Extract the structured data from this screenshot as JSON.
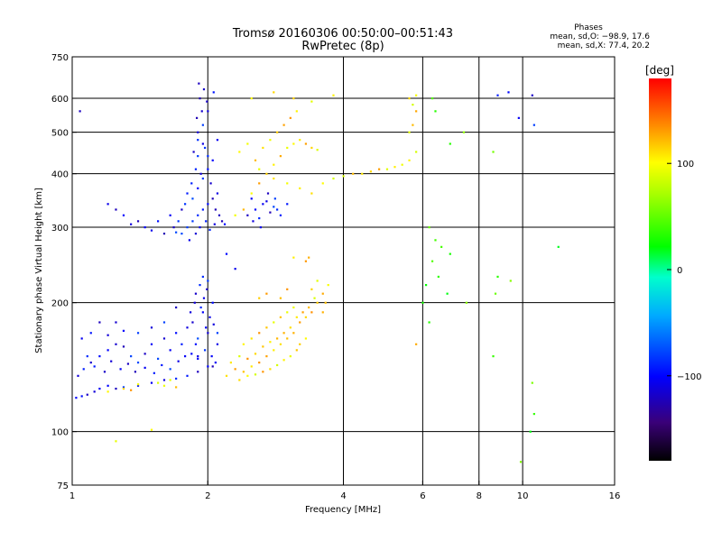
{
  "chart_data": {
    "type": "scatter",
    "title": "Tromsø 20160306 00:50:00–00:51:43",
    "subtitle": "RwPretec (8p)",
    "xlabel": "Frequency [MHz]",
    "ylabel": "Stationary phase Virtual Height [km]",
    "x_scale": "log",
    "y_scale": "log",
    "xlim": [
      1,
      16
    ],
    "ylim": [
      75,
      750
    ],
    "x_ticks": [
      "1",
      "2",
      "4",
      "6",
      "8",
      "10",
      "16"
    ],
    "x_tick_values": [
      1,
      2,
      4,
      6,
      8,
      10,
      16
    ],
    "y_ticks": [
      "75",
      "100",
      "200",
      "300",
      "400",
      "500",
      "600",
      "750"
    ],
    "y_tick_values": [
      75,
      100,
      200,
      300,
      400,
      500,
      600,
      750
    ],
    "grid_x": [
      2,
      4,
      6,
      8,
      10
    ],
    "grid_y": [
      100,
      200,
      300,
      400,
      500,
      600
    ],
    "grid": true,
    "phases": {
      "title": "Phases",
      "o_line": "mean, sd,O: −98.9, 17.6",
      "x_line": "mean, sd,X:  77.4, 20.2"
    },
    "colorbar": {
      "label": "[deg]",
      "range": [
        -180,
        180
      ],
      "ticks": [
        "100",
        "0",
        "−100"
      ],
      "tick_values": [
        100,
        0,
        -100
      ]
    },
    "series": [
      {
        "mode": "O",
        "phase_deg": -100,
        "points": [
          [
            1.02,
            120
          ],
          [
            1.05,
            121
          ],
          [
            1.08,
            122
          ],
          [
            1.12,
            124
          ],
          [
            1.15,
            126
          ],
          [
            1.2,
            128
          ],
          [
            1.25,
            126
          ],
          [
            1.3,
            127
          ],
          [
            1.4,
            128
          ],
          [
            1.5,
            130
          ],
          [
            1.6,
            132
          ],
          [
            1.7,
            133
          ],
          [
            1.8,
            135
          ],
          [
            1.9,
            138
          ],
          [
            2.0,
            142
          ],
          [
            1.03,
            135
          ],
          [
            1.06,
            140
          ],
          [
            1.1,
            145
          ],
          [
            1.15,
            150
          ],
          [
            1.2,
            155
          ],
          [
            1.25,
            160
          ],
          [
            1.3,
            158
          ],
          [
            1.35,
            150
          ],
          [
            1.4,
            145
          ],
          [
            1.45,
            152
          ],
          [
            1.5,
            160
          ],
          [
            1.55,
            148
          ],
          [
            1.6,
            165
          ],
          [
            1.65,
            155
          ],
          [
            1.7,
            170
          ],
          [
            1.75,
            160
          ],
          [
            1.8,
            175
          ],
          [
            1.85,
            180
          ],
          [
            1.9,
            165
          ],
          [
            1.95,
            190
          ],
          [
            2.0,
            170
          ],
          [
            2.05,
            200
          ],
          [
            2.1,
            160
          ],
          [
            1.88,
            210
          ],
          [
            1.92,
            220
          ],
          [
            1.96,
            205
          ],
          [
            2.02,
            185
          ],
          [
            1.7,
            195
          ],
          [
            1.6,
            180
          ],
          [
            1.5,
            175
          ],
          [
            1.4,
            170
          ],
          [
            1.3,
            172
          ],
          [
            1.2,
            168
          ],
          [
            1.1,
            170
          ],
          [
            1.05,
            165
          ],
          [
            1.08,
            150
          ],
          [
            1.12,
            142
          ],
          [
            1.18,
            138
          ],
          [
            1.22,
            146
          ],
          [
            1.28,
            140
          ],
          [
            1.33,
            144
          ],
          [
            1.38,
            138
          ],
          [
            1.45,
            141
          ],
          [
            1.52,
            137
          ],
          [
            1.58,
            143
          ],
          [
            1.65,
            140
          ],
          [
            1.72,
            146
          ],
          [
            1.78,
            150
          ],
          [
            1.84,
            152
          ],
          [
            1.9,
            148
          ],
          [
            1.97,
            155
          ],
          [
            2.04,
            150
          ],
          [
            2.08,
            145
          ],
          [
            1.83,
            190
          ],
          [
            1.87,
            200
          ],
          [
            1.93,
            195
          ],
          [
            1.99,
            215
          ],
          [
            2.06,
            178
          ],
          [
            1.95,
            230
          ],
          [
            2.0,
            225
          ],
          [
            1.75,
            290
          ],
          [
            1.8,
            300
          ],
          [
            1.85,
            310
          ],
          [
            1.9,
            320
          ],
          [
            1.95,
            330
          ],
          [
            2.0,
            340
          ],
          [
            2.05,
            350
          ],
          [
            2.1,
            360
          ],
          [
            1.82,
            280
          ],
          [
            1.88,
            290
          ],
          [
            1.92,
            300
          ],
          [
            1.98,
            310
          ],
          [
            2.02,
            296
          ],
          [
            2.07,
            305
          ],
          [
            1.7,
            292
          ],
          [
            1.6,
            290
          ],
          [
            1.5,
            295
          ],
          [
            1.55,
            310
          ],
          [
            1.65,
            320
          ],
          [
            1.75,
            330
          ],
          [
            1.85,
            350
          ],
          [
            1.9,
            370
          ],
          [
            1.95,
            390
          ],
          [
            2.0,
            410
          ],
          [
            2.05,
            430
          ],
          [
            1.86,
            450
          ],
          [
            1.9,
            480
          ],
          [
            1.95,
            520
          ],
          [
            2.0,
            560
          ],
          [
            1.92,
            600
          ],
          [
            1.96,
            630
          ],
          [
            1.88,
            410
          ],
          [
            1.84,
            380
          ],
          [
            1.8,
            360
          ],
          [
            1.9,
            440
          ],
          [
            1.93,
            400
          ],
          [
            1.97,
            460
          ],
          [
            2.03,
            380
          ],
          [
            2.08,
            330
          ],
          [
            2.12,
            320
          ],
          [
            2.15,
            310
          ],
          [
            2.18,
            305
          ],
          [
            1.78,
            340
          ],
          [
            1.72,
            310
          ],
          [
            1.68,
            300
          ],
          [
            1.45,
            300
          ],
          [
            1.4,
            310
          ],
          [
            1.35,
            305
          ],
          [
            1.3,
            320
          ],
          [
            1.25,
            330
          ],
          [
            1.2,
            340
          ],
          [
            1.9,
            500
          ],
          [
            1.95,
            470
          ],
          [
            2.0,
            440
          ],
          [
            1.99,
            590
          ],
          [
            1.94,
            560
          ],
          [
            1.89,
            540
          ],
          [
            2.06,
            620
          ],
          [
            1.91,
            650
          ],
          [
            2.1,
            480
          ],
          [
            2.45,
            320
          ],
          [
            2.55,
            330
          ],
          [
            2.65,
            340
          ],
          [
            2.75,
            325
          ],
          [
            2.85,
            330
          ],
          [
            2.5,
            350
          ],
          [
            2.6,
            315
          ],
          [
            2.7,
            345
          ],
          [
            2.8,
            335
          ],
          [
            2.9,
            320
          ],
          [
            3.0,
            340
          ],
          [
            2.52,
            310
          ],
          [
            2.62,
            300
          ],
          [
            2.72,
            360
          ],
          [
            2.82,
            350
          ],
          [
            1.04,
            560
          ],
          [
            1.15,
            180
          ],
          [
            1.25,
            180
          ],
          [
            1.9,
            150
          ],
          [
            2.05,
            142
          ],
          [
            1.88,
            160
          ],
          [
            1.98,
            175
          ],
          [
            2.3,
            240
          ],
          [
            2.2,
            260
          ],
          [
            2.1,
            170
          ],
          [
            9.3,
            620
          ],
          [
            9.8,
            540
          ],
          [
            10.5,
            610
          ],
          [
            10.6,
            520
          ],
          [
            8.8,
            610
          ]
        ]
      },
      {
        "mode": "X",
        "phase_deg": 110,
        "points": [
          [
            2.2,
            135
          ],
          [
            2.3,
            140
          ],
          [
            2.4,
            138
          ],
          [
            2.5,
            142
          ],
          [
            2.6,
            145
          ],
          [
            2.7,
            150
          ],
          [
            2.8,
            155
          ],
          [
            2.9,
            160
          ],
          [
            3.0,
            165
          ],
          [
            3.1,
            170
          ],
          [
            3.2,
            180
          ],
          [
            3.3,
            185
          ],
          [
            3.4,
            190
          ],
          [
            3.5,
            200
          ],
          [
            3.6,
            210
          ],
          [
            2.25,
            145
          ],
          [
            2.35,
            150
          ],
          [
            2.45,
            148
          ],
          [
            2.55,
            152
          ],
          [
            2.65,
            158
          ],
          [
            2.75,
            162
          ],
          [
            2.85,
            165
          ],
          [
            2.95,
            170
          ],
          [
            3.05,
            175
          ],
          [
            3.15,
            185
          ],
          [
            3.25,
            190
          ],
          [
            3.35,
            195
          ],
          [
            3.45,
            205
          ],
          [
            2.4,
            160
          ],
          [
            2.5,
            165
          ],
          [
            2.6,
            170
          ],
          [
            2.7,
            175
          ],
          [
            2.8,
            180
          ],
          [
            2.9,
            185
          ],
          [
            3.0,
            190
          ],
          [
            3.1,
            195
          ],
          [
            2.35,
            132
          ],
          [
            2.45,
            135
          ],
          [
            2.55,
            136
          ],
          [
            2.65,
            138
          ],
          [
            2.75,
            140
          ],
          [
            2.85,
            143
          ],
          [
            2.95,
            147
          ],
          [
            3.05,
            150
          ],
          [
            3.15,
            155
          ],
          [
            2.3,
            320
          ],
          [
            2.4,
            330
          ],
          [
            2.5,
            360
          ],
          [
            2.6,
            380
          ],
          [
            2.7,
            400
          ],
          [
            2.8,
            420
          ],
          [
            2.9,
            440
          ],
          [
            3.0,
            460
          ],
          [
            3.1,
            470
          ],
          [
            3.2,
            480
          ],
          [
            3.3,
            470
          ],
          [
            3.4,
            460
          ],
          [
            3.5,
            455
          ],
          [
            2.6,
            410
          ],
          [
            2.8,
            390
          ],
          [
            3.0,
            380
          ],
          [
            3.2,
            370
          ],
          [
            3.4,
            360
          ],
          [
            3.6,
            380
          ],
          [
            3.8,
            390
          ],
          [
            4.0,
            395
          ],
          [
            4.2,
            400
          ],
          [
            4.4,
            400
          ],
          [
            4.6,
            405
          ],
          [
            4.8,
            410
          ],
          [
            5.0,
            410
          ],
          [
            5.2,
            415
          ],
          [
            5.4,
            420
          ],
          [
            5.6,
            430
          ],
          [
            5.8,
            450
          ],
          [
            5.6,
            500
          ],
          [
            5.7,
            520
          ],
          [
            5.8,
            560
          ],
          [
            5.7,
            580
          ],
          [
            5.6,
            600
          ],
          [
            5.8,
            610
          ],
          [
            2.35,
            450
          ],
          [
            2.45,
            470
          ],
          [
            2.55,
            430
          ],
          [
            2.65,
            460
          ],
          [
            2.75,
            480
          ],
          [
            2.85,
            500
          ],
          [
            2.95,
            520
          ],
          [
            3.05,
            540
          ],
          [
            3.15,
            560
          ],
          [
            3.3,
            250
          ],
          [
            3.35,
            255
          ],
          [
            3.1,
            255
          ],
          [
            1.55,
            130
          ],
          [
            1.6,
            128
          ],
          [
            1.65,
            132
          ],
          [
            1.7,
            127
          ],
          [
            1.3,
            126
          ],
          [
            1.35,
            125
          ],
          [
            1.4,
            129
          ],
          [
            1.2,
            124
          ],
          [
            1.5,
            101
          ],
          [
            1.25,
            95
          ],
          [
            2.7,
            210
          ],
          [
            2.6,
            205
          ],
          [
            3.6,
            190
          ],
          [
            3.65,
            200
          ],
          [
            3.7,
            220
          ],
          [
            3.4,
            215
          ],
          [
            3.5,
            225
          ],
          [
            2.9,
            205
          ],
          [
            3.0,
            215
          ],
          [
            3.2,
            160
          ],
          [
            3.3,
            165
          ],
          [
            2.5,
            600
          ],
          [
            2.8,
            620
          ],
          [
            3.1,
            600
          ],
          [
            3.4,
            590
          ],
          [
            3.8,
            610
          ],
          [
            5.8,
            160
          ]
        ]
      },
      {
        "mode": "scattered",
        "phase_deg": 40,
        "points": [
          [
            6.2,
            300
          ],
          [
            6.4,
            280
          ],
          [
            6.6,
            270
          ],
          [
            6.3,
            250
          ],
          [
            6.5,
            230
          ],
          [
            6.8,
            210
          ],
          [
            6.1,
            220
          ],
          [
            8.8,
            230
          ],
          [
            9.4,
            225
          ],
          [
            8.7,
            210
          ],
          [
            7.5,
            200
          ],
          [
            8.6,
            150
          ],
          [
            10.5,
            130
          ],
          [
            10.6,
            110
          ],
          [
            10.4,
            100
          ],
          [
            9.9,
            85
          ],
          [
            6.2,
            180
          ],
          [
            6.0,
            200
          ],
          [
            6.9,
            260
          ],
          [
            12.0,
            270
          ],
          [
            6.4,
            560
          ],
          [
            6.9,
            470
          ],
          [
            7.4,
            500
          ],
          [
            8.6,
            450
          ],
          [
            6.3,
            600
          ]
        ]
      }
    ]
  }
}
